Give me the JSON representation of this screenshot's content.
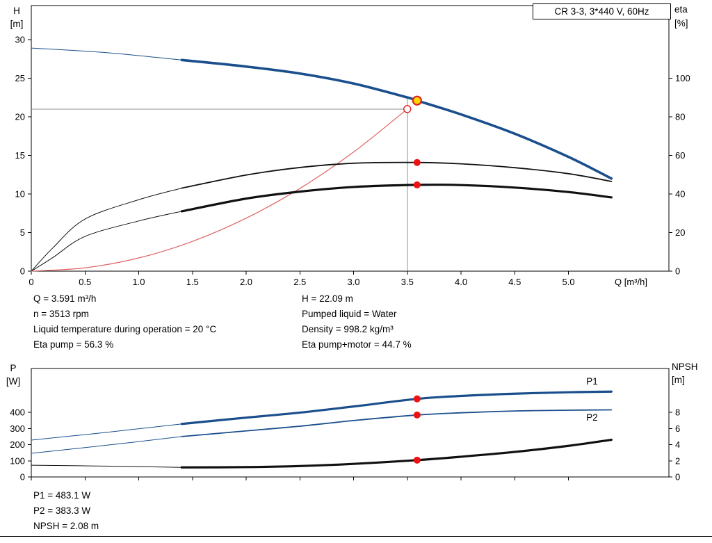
{
  "title_box": "CR 3-3, 3*440 V, 60Hz",
  "colors": {
    "curve_blue": "#1a4e8c",
    "curve_black": "#101010",
    "system_red": "#e06262",
    "marker_red": "#ee1111",
    "marker_yellow": "#ffd500",
    "marker_ring": "#dd2020",
    "crosshair_gray": "#909090"
  },
  "info_top": {
    "col1": [
      "Q = 3.591 m³/h",
      "n = 3513 rpm",
      "Liquid temperature during operation = 20 °C",
      "Eta pump = 56.3 %"
    ],
    "col2": [
      "H = 22.09 m",
      "Pumped liquid = Water",
      "Density = 998.2 kg/m³",
      "Eta pump+motor = 44.7 %"
    ]
  },
  "info_bottom": [
    "P1 = 483.1 W",
    "P2 = 383.3 W",
    "NPSH = 2.08 m"
  ],
  "chart_data": [
    {
      "id": "qh",
      "type": "line",
      "title": "CR 3-3, 3*440 V, 60Hz",
      "x": {
        "label": "Q [m³/h]",
        "min": 0,
        "max": 5.935,
        "ticks": [
          0,
          0.5,
          1,
          1.5,
          2,
          2.5,
          3,
          3.5,
          4,
          4.5,
          5
        ],
        "tick_labels": [
          "0",
          "0.5",
          "1.0",
          "1.5",
          "2.0",
          "2.5",
          "3.0",
          "3.5",
          "4.0",
          "4.5",
          "5.0"
        ]
      },
      "y_left": {
        "title": [
          "H",
          "[m]"
        ],
        "min": 0,
        "max": 34.4,
        "ticks": [
          0,
          5,
          10,
          15,
          20,
          25,
          30
        ],
        "tick_labels": [
          "0",
          "5",
          "10",
          "15",
          "20",
          "25",
          "30"
        ]
      },
      "y_right": {
        "title": [
          "eta",
          "[%]"
        ],
        "min": 0,
        "max": 137.6,
        "ticks": [
          0,
          20,
          40,
          60,
          80,
          100
        ],
        "tick_labels": [
          "0",
          "20",
          "40",
          "60",
          "80",
          "100"
        ]
      },
      "crosshair": {
        "q": 3.5,
        "h": 21,
        "top": 22.5
      },
      "series": [
        {
          "name": "head-ext",
          "axis": "left",
          "color": "curve_blue",
          "width": 1,
          "points": [
            [
              0,
              28.9
            ],
            [
              0.7,
              28.3
            ],
            [
              1.4,
              27.35
            ]
          ]
        },
        {
          "name": "eta-pump-ext",
          "axis": "right",
          "color": "curve_black",
          "width": 1,
          "points": [
            [
              0,
              0
            ],
            [
              0.2,
              12
            ],
            [
              0.5,
              27
            ],
            [
              1.0,
              37
            ],
            [
              1.4,
              43
            ]
          ]
        },
        {
          "name": "eta-pump-motor-ext",
          "axis": "right",
          "color": "curve_black",
          "width": 1,
          "points": [
            [
              0,
              0
            ],
            [
              0.2,
              7
            ],
            [
              0.5,
              18
            ],
            [
              1.0,
              26
            ],
            [
              1.4,
              31
            ]
          ]
        },
        {
          "name": "system-curve",
          "axis": "left",
          "color": "system_red",
          "width": 1.2,
          "points": [
            [
              0,
              0
            ],
            [
              0.5,
              0.43
            ],
            [
              1.0,
              1.71
            ],
            [
              1.5,
              3.86
            ],
            [
              2.0,
              6.86
            ],
            [
              2.5,
              10.71
            ],
            [
              3.0,
              15.43
            ],
            [
              3.5,
              21
            ]
          ]
        },
        {
          "name": "eta-pump",
          "axis": "right",
          "color": "curve_black",
          "width": 1.8,
          "points": [
            [
              1.4,
              43
            ],
            [
              2.0,
              49.8
            ],
            [
              2.5,
              53.7
            ],
            [
              3.0,
              55.9
            ],
            [
              3.591,
              56.3
            ],
            [
              4.0,
              55.6
            ],
            [
              4.5,
              53.6
            ],
            [
              5.0,
              50.5
            ],
            [
              5.4,
              46.5
            ]
          ]
        },
        {
          "name": "eta-pump-motor",
          "axis": "right",
          "color": "curve_black",
          "width": 3.2,
          "points": [
            [
              1.4,
              31
            ],
            [
              2.0,
              37.6
            ],
            [
              2.5,
              41.2
            ],
            [
              3.0,
              43.6
            ],
            [
              3.591,
              44.7
            ],
            [
              4.0,
              44.6
            ],
            [
              4.5,
              43.3
            ],
            [
              5.0,
              41
            ],
            [
              5.4,
              38.2
            ]
          ]
        },
        {
          "name": "head",
          "axis": "left",
          "color": "curve_blue",
          "width": 3.6,
          "points": [
            [
              1.4,
              27.35
            ],
            [
              2.0,
              26.5
            ],
            [
              2.5,
              25.6
            ],
            [
              3.0,
              24.3
            ],
            [
              3.5,
              22.5
            ],
            [
              3.591,
              22.09
            ],
            [
              4.0,
              20.3
            ],
            [
              4.5,
              17.8
            ],
            [
              5.0,
              14.8
            ],
            [
              5.4,
              12
            ]
          ]
        }
      ],
      "markers": [
        {
          "name": "requested-duty-point",
          "style": "open",
          "axis": "left",
          "q": 3.5,
          "v": 21
        },
        {
          "name": "eta-pump-point",
          "style": "dot",
          "axis": "right",
          "q": 3.591,
          "v": 56.3
        },
        {
          "name": "eta-pump-motor-point",
          "style": "dot",
          "axis": "right",
          "q": 3.591,
          "v": 44.7
        },
        {
          "name": "duty-point",
          "style": "operating",
          "axis": "left",
          "q": 3.591,
          "v": 22.09
        }
      ]
    },
    {
      "id": "power",
      "type": "line",
      "x": {
        "label": "",
        "min": 0,
        "max": 5.935,
        "ticks": [
          0,
          0.5,
          1,
          1.5,
          2,
          2.5,
          3,
          3.5,
          4,
          4.5,
          5
        ],
        "tick_labels": []
      },
      "y_left": {
        "title": [
          "P",
          "[W]"
        ],
        "min": 0,
        "max": 671,
        "ticks": [
          0,
          100,
          200,
          300,
          400
        ],
        "tick_labels": [
          "0",
          "100",
          "200",
          "300",
          "400"
        ]
      },
      "y_right": {
        "title": [
          "NPSH",
          "[m]"
        ],
        "min": 0,
        "max": 13.42,
        "ticks": [
          0,
          2,
          4,
          6,
          8
        ],
        "tick_labels": [
          "0",
          "2",
          "4",
          "6",
          "8"
        ]
      },
      "series": [
        {
          "name": "p1-ext",
          "axis": "left",
          "color": "curve_blue",
          "width": 1,
          "points": [
            [
              0,
              228
            ],
            [
              0.7,
              276
            ],
            [
              1.4,
              328
            ]
          ]
        },
        {
          "name": "p2-ext",
          "axis": "left",
          "color": "curve_blue",
          "width": 1,
          "points": [
            [
              0,
              146
            ],
            [
              0.7,
              196
            ],
            [
              1.4,
              250
            ]
          ]
        },
        {
          "name": "npsh-ext",
          "axis": "right",
          "color": "curve_black",
          "width": 1,
          "points": [
            [
              0,
              1.45
            ],
            [
              0.75,
              1.33
            ],
            [
              1.4,
              1.18
            ]
          ]
        },
        {
          "name": "p1",
          "axis": "left",
          "color": "curve_blue",
          "width": 3.2,
          "label": {
            "text": "P1",
            "q": 5.22,
            "v": 592
          },
          "points": [
            [
              1.4,
              328
            ],
            [
              2.0,
              367
            ],
            [
              2.5,
              398
            ],
            [
              3.0,
              436
            ],
            [
              3.591,
              483
            ],
            [
              4.0,
              501
            ],
            [
              4.5,
              515
            ],
            [
              5.0,
              524
            ],
            [
              5.4,
              528
            ]
          ]
        },
        {
          "name": "p2",
          "axis": "left",
          "color": "curve_blue",
          "width": 1.8,
          "label": {
            "text": "P2",
            "q": 5.22,
            "v": 368
          },
          "points": [
            [
              1.4,
              250
            ],
            [
              2.0,
              285
            ],
            [
              2.5,
              314
            ],
            [
              3.0,
              349
            ],
            [
              3.591,
              383
            ],
            [
              4.0,
              397
            ],
            [
              4.5,
              408
            ],
            [
              5.0,
              413
            ],
            [
              5.4,
              415
            ]
          ]
        },
        {
          "name": "npsh",
          "axis": "right",
          "color": "curve_black",
          "width": 3.2,
          "points": [
            [
              1.4,
              1.18
            ],
            [
              2.0,
              1.22
            ],
            [
              2.5,
              1.35
            ],
            [
              3.0,
              1.62
            ],
            [
              3.591,
              2.08
            ],
            [
              4.0,
              2.5
            ],
            [
              4.5,
              3.1
            ],
            [
              5.0,
              3.85
            ],
            [
              5.4,
              4.6
            ]
          ]
        }
      ],
      "markers": [
        {
          "name": "p1-point",
          "style": "dot",
          "axis": "left",
          "q": 3.591,
          "v": 483.1
        },
        {
          "name": "p2-point",
          "style": "dot",
          "axis": "left",
          "q": 3.591,
          "v": 383.3
        },
        {
          "name": "npsh-point",
          "style": "dot",
          "axis": "right",
          "q": 3.591,
          "v": 2.08
        }
      ]
    }
  ]
}
